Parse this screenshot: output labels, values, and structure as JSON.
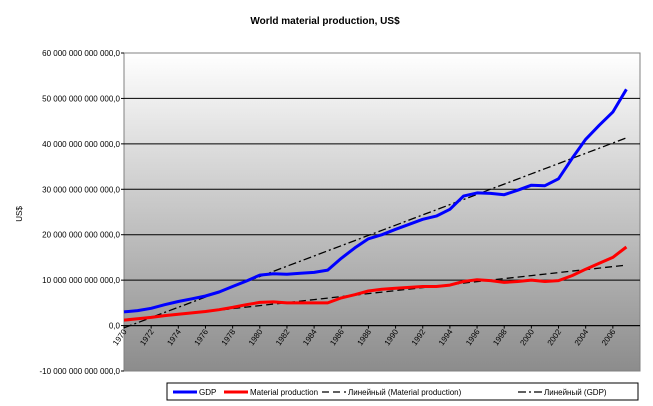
{
  "chart_data": {
    "type": "line",
    "title": "World material production, US$",
    "xlabel": "",
    "ylabel": "US$",
    "ylim": [
      -10000000000000,
      60000000000000
    ],
    "y_ticks": [
      -10000000000000,
      0,
      10000000000000,
      20000000000000,
      30000000000000,
      40000000000000,
      50000000000000,
      60000000000000
    ],
    "y_tick_labels": [
      "-10 000 000 000 000,0",
      "0,0",
      "10 000 000 000 000,0",
      "20 000 000 000 000,0",
      "30 000 000 000 000,0",
      "40 000 000 000 000,0",
      "50 000 000 000 000,0",
      "60 000 000 000 000,0"
    ],
    "xlim": [
      1970,
      2008
    ],
    "x_tick_labels": [
      "1970",
      "1972",
      "1974",
      "1976",
      "1978",
      "1980",
      "1982",
      "1984",
      "1986",
      "1988",
      "1990",
      "1992",
      "1994",
      "1996",
      "1998",
      "2000",
      "2002",
      "2004",
      "2006"
    ],
    "grid": true,
    "legend_position": "bottom",
    "x": [
      1970,
      1971,
      1972,
      1973,
      1974,
      1975,
      1976,
      1977,
      1978,
      1979,
      1980,
      1981,
      1982,
      1983,
      1984,
      1985,
      1986,
      1987,
      1988,
      1989,
      1990,
      1991,
      1992,
      1993,
      1994,
      1995,
      1996,
      1997,
      1998,
      1999,
      2000,
      2001,
      2002,
      2003,
      2004,
      2005,
      2006,
      2007
    ],
    "series": [
      {
        "name": "GDP",
        "color": "#0000ff",
        "style": "solid",
        "values": [
          3000000000000,
          3300000000000,
          3800000000000,
          4600000000000,
          5300000000000,
          5900000000000,
          6500000000000,
          7400000000000,
          8600000000000,
          9800000000000,
          11100000000000,
          11400000000000,
          11300000000000,
          11500000000000,
          11700000000000,
          12200000000000,
          14800000000000,
          17100000000000,
          19100000000000,
          20000000000000,
          21200000000000,
          22300000000000,
          23400000000000,
          24100000000000,
          25600000000000,
          28500000000000,
          29200000000000,
          29100000000000,
          28800000000000,
          29800000000000,
          30900000000000,
          30800000000000,
          32300000000000,
          36800000000000,
          41000000000000,
          44100000000000,
          47000000000000,
          52000000000000
        ]
      },
      {
        "name": "Material production",
        "color": "#ff0000",
        "style": "solid",
        "values": [
          1200000000000,
          1500000000000,
          1800000000000,
          2200000000000,
          2500000000000,
          2800000000000,
          3100000000000,
          3500000000000,
          4000000000000,
          4600000000000,
          5100000000000,
          5200000000000,
          5000000000000,
          5000000000000,
          5000000000000,
          5000000000000,
          6100000000000,
          6800000000000,
          7600000000000,
          8000000000000,
          8200000000000,
          8400000000000,
          8600000000000,
          8600000000000,
          8900000000000,
          9700000000000,
          10100000000000,
          9900000000000,
          9500000000000,
          9700000000000,
          10000000000000,
          9700000000000,
          9900000000000,
          11000000000000,
          12400000000000,
          13700000000000,
          15000000000000,
          17300000000000
        ]
      },
      {
        "name": "Линейный (Material production)",
        "color": "#000000",
        "style": "dash",
        "values": [
          1100000000000,
          1430000000000,
          1760000000000,
          2090000000000,
          2420000000000,
          2750000000000,
          3080000000000,
          3410000000000,
          3740000000000,
          4070000000000,
          4400000000000,
          4730000000000,
          5060000000000,
          5390000000000,
          5720000000000,
          6050000000000,
          6380000000000,
          6710000000000,
          7040000000000,
          7370000000000,
          7700000000000,
          8030000000000,
          8360000000000,
          8690000000000,
          9020000000000,
          9350000000000,
          9680000000000,
          10010000000000,
          10340000000000,
          10670000000000,
          11000000000000,
          11330000000000,
          11660000000000,
          11990000000000,
          12320000000000,
          12650000000000,
          12980000000000,
          13310000000000
        ]
      },
      {
        "name": "Линейный (GDP)",
        "color": "#000000",
        "style": "dashdot",
        "values": [
          -500000000000,
          630000000000,
          1760000000000,
          2890000000000,
          4020000000000,
          5150000000000,
          6280000000000,
          7410000000000,
          8540000000000,
          9670000000000,
          10800000000000,
          11930000000000,
          13060000000000,
          14190000000000,
          15320000000000,
          16450000000000,
          17580000000000,
          18710000000000,
          19840000000000,
          20970000000000,
          22100000000000,
          23230000000000,
          24360000000000,
          25490000000000,
          26620000000000,
          27750000000000,
          28880000000000,
          30010000000000,
          31140000000000,
          32270000000000,
          33400000000000,
          34530000000000,
          35660000000000,
          36790000000000,
          37920000000000,
          39050000000000,
          40180000000000,
          41310000000000
        ]
      }
    ]
  }
}
